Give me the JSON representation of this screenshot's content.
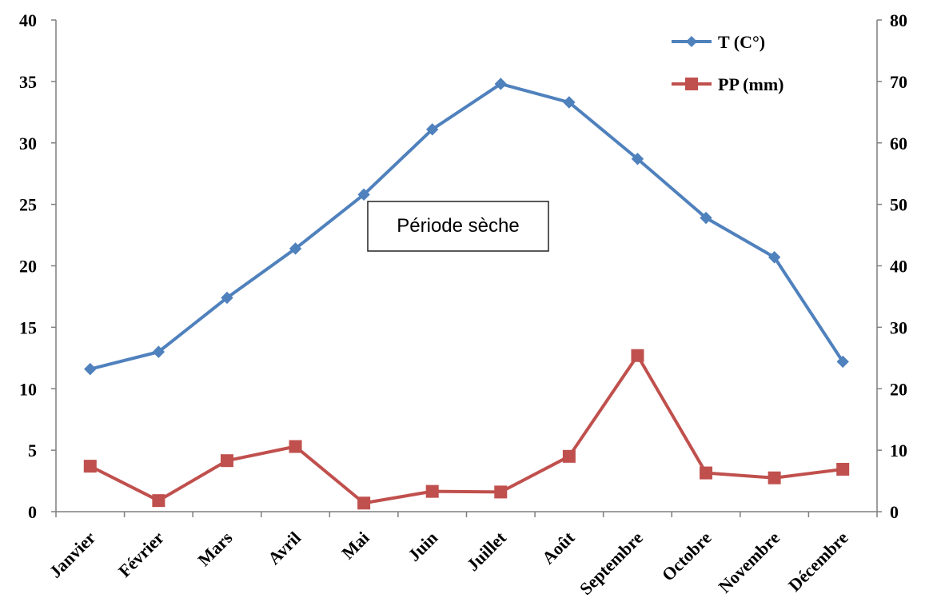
{
  "chart_data": {
    "type": "line",
    "categories": [
      "Janvier",
      "Février",
      "Mars",
      "Avril",
      "Mai",
      "Juin",
      "Juillet",
      "Août",
      "Septembre",
      "Octobre",
      "Novembre",
      "Décembre"
    ],
    "series": [
      {
        "name": "T (C°)",
        "axis": "left",
        "color": "#4f81bd",
        "marker": "diamond",
        "values": [
          11.6,
          13.0,
          17.4,
          21.4,
          25.8,
          31.1,
          34.8,
          33.3,
          28.7,
          23.9,
          20.7,
          12.2
        ]
      },
      {
        "name": "PP (mm)",
        "axis": "right",
        "color": "#c0504d",
        "marker": "square",
        "values": [
          7.4,
          1.8,
          8.3,
          10.6,
          1.4,
          3.3,
          3.2,
          9.0,
          25.4,
          6.3,
          5.5,
          6.9
        ]
      }
    ],
    "y_left": {
      "lim": [
        0,
        40
      ],
      "ticks": [
        "0",
        "5",
        "10",
        "15",
        "20",
        "25",
        "30",
        "35",
        "40"
      ]
    },
    "y_right": {
      "lim": [
        0,
        80
      ],
      "ticks": [
        "0",
        "10",
        "20",
        "30",
        "40",
        "50",
        "60",
        "70",
        "80"
      ]
    },
    "grid": false,
    "legend_position": "top-right",
    "annotation": "Période sèche"
  }
}
